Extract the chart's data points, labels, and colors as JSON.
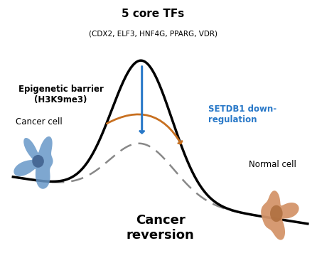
{
  "title_main": "5 core TFs",
  "title_sub": "(CDX2, ELF3, HNF4G, PPARG, VDR)",
  "label_epigenetic": "Epigenetic barrier\n(H3K9me3)",
  "label_setdb1": "SETDB1 down-\nregulation",
  "label_cancer_cell": "Cancer cell",
  "label_normal_cell": "Normal cell",
  "label_reversion": "Cancer\nreversion",
  "curve_color": "#000000",
  "dashed_color": "#888888",
  "arrow_orange_color": "#c87020",
  "arrow_blue_color": "#2878c8",
  "setdb1_text_color": "#2878c8",
  "cancer_cell_main": "#6898c8",
  "cancer_cell_inner": "#3a5a88",
  "normal_cell_main": "#d4956a",
  "normal_cell_inner": "#b07040",
  "background_color": "#ffffff"
}
